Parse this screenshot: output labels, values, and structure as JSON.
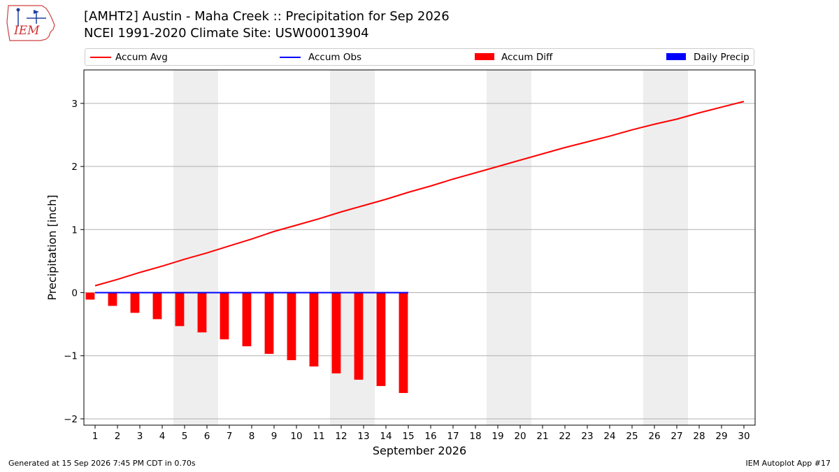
{
  "logo": {
    "text": "IEM"
  },
  "header": {
    "title": "[AMHT2] Austin - Maha Creek :: Precipitation for Sep 2026",
    "subtitle": "NCEI 1991-2020 Climate Site: USW00013904"
  },
  "footer": {
    "generated": "Generated at 15 Sep 2026 7:45 PM CDT in 0.70s",
    "app": "IEM Autoplot App #17"
  },
  "colors": {
    "accum_avg": "#ff0000",
    "accum_obs": "#0000ff",
    "accum_diff": "#ff0000",
    "daily_precip": "#0000ff",
    "weekend_shade": "#eeeeee",
    "grid": "#b0b0b0"
  },
  "chart_data": {
    "type": "line",
    "title": "",
    "xlabel": "September 2026",
    "ylabel": "Precipitation [inch]",
    "x": [
      1,
      2,
      3,
      4,
      5,
      6,
      7,
      8,
      9,
      10,
      11,
      12,
      13,
      14,
      15,
      16,
      17,
      18,
      19,
      20,
      21,
      22,
      23,
      24,
      25,
      26,
      27,
      28,
      29,
      30
    ],
    "xlim": [
      0.5,
      30.5
    ],
    "ylim": [
      -2.1,
      3.53
    ],
    "yticks": [
      -2,
      -1,
      0,
      1,
      2,
      3
    ],
    "ytick_labels": [
      "−2",
      "−1",
      "0",
      "1",
      "2",
      "3"
    ],
    "grid": "horizontal",
    "legend_position": "top",
    "legend": [
      "Accum Avg",
      "Accum Obs",
      "Accum Diff",
      "Daily Precip"
    ],
    "shaded_days": [
      [
        5,
        6
      ],
      [
        12,
        13
      ],
      [
        19,
        20
      ],
      [
        26,
        27
      ]
    ],
    "series": [
      {
        "name": "Accum Avg",
        "type": "line",
        "x": [
          1,
          2,
          3,
          4,
          5,
          6,
          7,
          8,
          9,
          10,
          11,
          12,
          13,
          14,
          15,
          16,
          17,
          18,
          19,
          20,
          21,
          22,
          23,
          24,
          25,
          26,
          27,
          28,
          29,
          30
        ],
        "values": [
          0.11,
          0.21,
          0.32,
          0.42,
          0.53,
          0.63,
          0.74,
          0.85,
          0.97,
          1.07,
          1.17,
          1.28,
          1.38,
          1.48,
          1.59,
          1.69,
          1.8,
          1.9,
          2.0,
          2.1,
          2.2,
          2.3,
          2.39,
          2.48,
          2.58,
          2.67,
          2.75,
          2.85,
          2.94,
          3.03
        ]
      },
      {
        "name": "Accum Obs",
        "type": "line",
        "x": [
          1,
          2,
          3,
          4,
          5,
          6,
          7,
          8,
          9,
          10,
          11,
          12,
          13,
          14,
          15
        ],
        "values": [
          0,
          0,
          0,
          0,
          0,
          0,
          0,
          0,
          0,
          0,
          0,
          0,
          0,
          0,
          0
        ]
      },
      {
        "name": "Accum Diff",
        "type": "bar",
        "x": [
          1,
          2,
          3,
          4,
          5,
          6,
          7,
          8,
          9,
          10,
          11,
          12,
          13,
          14,
          15
        ],
        "values": [
          -0.11,
          -0.21,
          -0.32,
          -0.42,
          -0.53,
          -0.63,
          -0.74,
          -0.85,
          -0.97,
          -1.07,
          -1.17,
          -1.28,
          -1.38,
          -1.48,
          -1.59
        ]
      },
      {
        "name": "Daily Precip",
        "type": "bar",
        "x": [
          1,
          2,
          3,
          4,
          5,
          6,
          7,
          8,
          9,
          10,
          11,
          12,
          13,
          14,
          15
        ],
        "values": [
          0,
          0,
          0,
          0,
          0,
          0,
          0,
          0,
          0,
          0,
          0,
          0,
          0,
          0,
          0
        ]
      }
    ]
  }
}
